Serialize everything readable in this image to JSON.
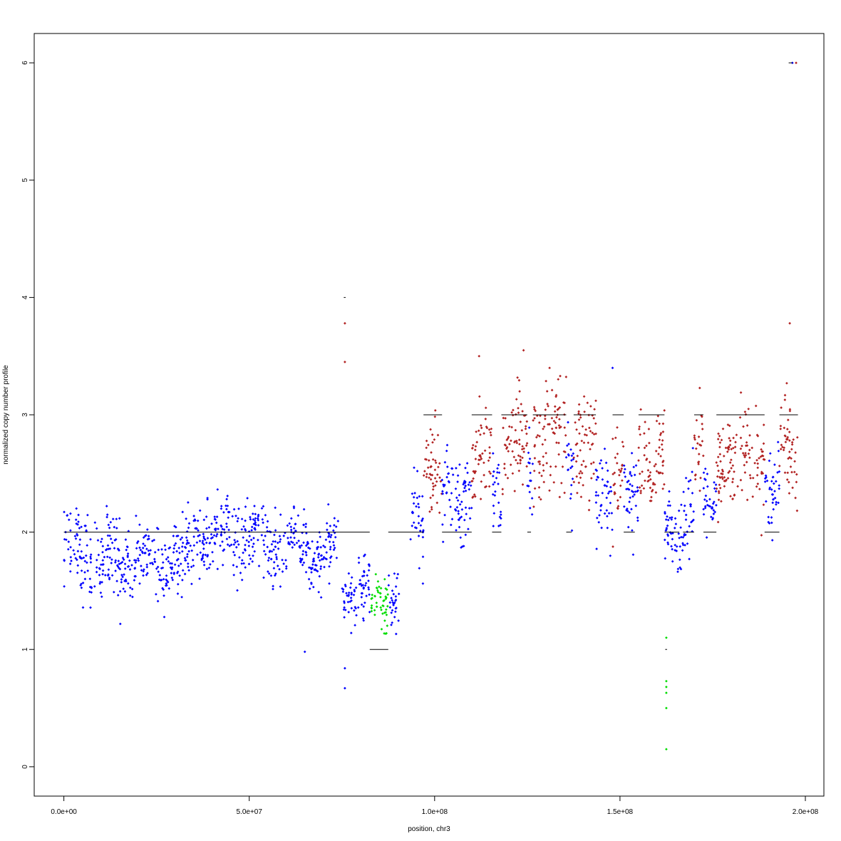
{
  "chart_data": {
    "type": "scatter",
    "title": "",
    "xlabel": "position, chr3",
    "ylabel": "normalized copy number profile",
    "xlim": [
      -8000000,
      205000000
    ],
    "ylim": [
      -0.25,
      6.25
    ],
    "x_ticks": [
      0,
      50000000,
      100000000,
      150000000,
      200000000
    ],
    "x_tick_labels": [
      "0.0e+00",
      "5.0e+07",
      "1.0e+08",
      "1.5e+08",
      "2.0e+08"
    ],
    "y_ticks": [
      0,
      1,
      2,
      3,
      4,
      5,
      6
    ],
    "y_tick_labels": [
      "0",
      "1",
      "2",
      "3",
      "4",
      "5",
      "6"
    ],
    "grid": false,
    "legend": "none",
    "colors": {
      "normal": "#0000ff",
      "gain": "#b22222",
      "loss": "#00dd00",
      "segment_line": "#000000"
    },
    "point_density_per_mb": 10,
    "segments": [
      {
        "start": 0,
        "end": 15000000,
        "mean": 1.8,
        "sd": 0.17,
        "call": "normal",
        "copy_number": 2
      },
      {
        "start": 15000000,
        "end": 35000000,
        "mean": 1.75,
        "sd": 0.14,
        "call": "normal",
        "copy_number": 2
      },
      {
        "start": 35000000,
        "end": 55000000,
        "mean": 1.95,
        "sd": 0.15,
        "call": "normal",
        "copy_number": 2
      },
      {
        "start": 55000000,
        "end": 74000000,
        "mean": 1.85,
        "sd": 0.13,
        "call": "normal",
        "copy_number": 2
      },
      {
        "start": 75000000,
        "end": 82500000,
        "mean": 1.5,
        "sd": 0.12,
        "call": "normal",
        "copy_number": 2
      },
      {
        "start": 82500000,
        "end": 87500000,
        "mean": 1.4,
        "sd": 0.14,
        "call": "loss",
        "copy_number": 1
      },
      {
        "start": 87500000,
        "end": 90500000,
        "mean": 1.5,
        "sd": 0.13,
        "call": "normal",
        "copy_number": 2
      },
      {
        "start": 93500000,
        "end": 97000000,
        "mean": 2.1,
        "sd": 0.22,
        "call": "normal",
        "copy_number": 2
      },
      {
        "start": 97000000,
        "end": 102000000,
        "mean": 2.6,
        "sd": 0.18,
        "call": "gain",
        "copy_number": 3
      },
      {
        "start": 102000000,
        "end": 110000000,
        "mean": 2.25,
        "sd": 0.2,
        "call": "normal",
        "copy_number": 2
      },
      {
        "start": 110000000,
        "end": 115500000,
        "mean": 2.6,
        "sd": 0.22,
        "call": "gain",
        "copy_number": 3
      },
      {
        "start": 115500000,
        "end": 118000000,
        "mean": 2.4,
        "sd": 0.15,
        "call": "normal",
        "copy_number": 2
      },
      {
        "start": 118000000,
        "end": 125000000,
        "mean": 2.7,
        "sd": 0.22,
        "call": "gain",
        "copy_number": 3
      },
      {
        "start": 125000000,
        "end": 126500000,
        "mean": 2.55,
        "sd": 0.2,
        "call": "normal",
        "copy_number": 2
      },
      {
        "start": 126500000,
        "end": 135500000,
        "mean": 2.8,
        "sd": 0.22,
        "call": "gain",
        "copy_number": 3
      },
      {
        "start": 135500000,
        "end": 137500000,
        "mean": 2.6,
        "sd": 0.2,
        "call": "normal",
        "copy_number": 2
      },
      {
        "start": 137500000,
        "end": 143500000,
        "mean": 2.7,
        "sd": 0.22,
        "call": "gain",
        "copy_number": 3
      },
      {
        "start": 143500000,
        "end": 148000000,
        "mean": 2.3,
        "sd": 0.2,
        "call": "normal",
        "copy_number": 2
      },
      {
        "start": 148000000,
        "end": 151000000,
        "mean": 2.6,
        "sd": 0.18,
        "call": "gain",
        "copy_number": 3
      },
      {
        "start": 151000000,
        "end": 155000000,
        "mean": 2.3,
        "sd": 0.18,
        "call": "normal",
        "copy_number": 2
      },
      {
        "start": 155000000,
        "end": 162000000,
        "mean": 2.6,
        "sd": 0.2,
        "call": "gain",
        "copy_number": 3
      },
      {
        "start": 162000000,
        "end": 167000000,
        "mean": 1.95,
        "sd": 0.15,
        "call": "normal",
        "copy_number": 2
      },
      {
        "start": 167000000,
        "end": 170000000,
        "mean": 2.3,
        "sd": 0.2,
        "call": "normal",
        "copy_number": 2
      },
      {
        "start": 170000000,
        "end": 172500000,
        "mean": 2.65,
        "sd": 0.2,
        "call": "gain",
        "copy_number": 3
      },
      {
        "start": 172500000,
        "end": 176000000,
        "mean": 2.2,
        "sd": 0.15,
        "call": "normal",
        "copy_number": 2
      },
      {
        "start": 176000000,
        "end": 189000000,
        "mean": 2.6,
        "sd": 0.22,
        "call": "gain",
        "copy_number": 3
      },
      {
        "start": 189000000,
        "end": 193000000,
        "mean": 2.35,
        "sd": 0.18,
        "call": "normal",
        "copy_number": 2
      },
      {
        "start": 193000000,
        "end": 198000000,
        "mean": 2.65,
        "sd": 0.25,
        "call": "gain",
        "copy_number": 3
      }
    ],
    "points_extra": [
      {
        "x": 75800000,
        "y": 3.78,
        "call": "gain"
      },
      {
        "x": 75800000,
        "y": 3.45,
        "call": "gain"
      },
      {
        "x": 75800000,
        "y": 0.84,
        "call": "normal"
      },
      {
        "x": 75800000,
        "y": 0.67,
        "call": "normal"
      },
      {
        "x": 65000000,
        "y": 0.98,
        "call": "normal"
      },
      {
        "x": 162500000,
        "y": 1.1,
        "call": "loss"
      },
      {
        "x": 162500000,
        "y": 0.73,
        "call": "loss"
      },
      {
        "x": 162500000,
        "y": 0.68,
        "call": "loss"
      },
      {
        "x": 162500000,
        "y": 0.63,
        "call": "loss"
      },
      {
        "x": 162500000,
        "y": 0.5,
        "call": "loss"
      },
      {
        "x": 162500000,
        "y": 0.15,
        "call": "loss"
      },
      {
        "x": 195800000,
        "y": 3.78,
        "call": "gain"
      },
      {
        "x": 196500000,
        "y": 6.0,
        "call": "normal"
      },
      {
        "x": 197500000,
        "y": 6.0,
        "call": "gain"
      },
      {
        "x": 148000000,
        "y": 3.4,
        "call": "normal"
      },
      {
        "x": 124000000,
        "y": 3.55,
        "call": "gain"
      },
      {
        "x": 131000000,
        "y": 3.4,
        "call": "gain"
      },
      {
        "x": 112000000,
        "y": 3.5,
        "call": "gain"
      }
    ],
    "segment_lines": [
      {
        "x0": 0,
        "x1": 82500000,
        "y": 2
      },
      {
        "x0": 87500000,
        "x1": 97000000,
        "y": 2
      },
      {
        "x0": 82500000,
        "x1": 87500000,
        "y": 1
      },
      {
        "x0": 97000000,
        "x1": 102000000,
        "y": 3
      },
      {
        "x0": 110000000,
        "x1": 115500000,
        "y": 3
      },
      {
        "x0": 118000000,
        "x1": 125000000,
        "y": 3
      },
      {
        "x0": 126500000,
        "x1": 135500000,
        "y": 3
      },
      {
        "x0": 137500000,
        "x1": 143500000,
        "y": 3
      },
      {
        "x0": 148000000,
        "x1": 151000000,
        "y": 3
      },
      {
        "x0": 155000000,
        "x1": 162000000,
        "y": 3
      },
      {
        "x0": 170000000,
        "x1": 172500000,
        "y": 3
      },
      {
        "x0": 176000000,
        "x1": 189000000,
        "y": 3
      },
      {
        "x0": 193000000,
        "x1": 198000000,
        "y": 3
      },
      {
        "x0": 102000000,
        "x1": 110000000,
        "y": 2
      },
      {
        "x0": 115500000,
        "x1": 118000000,
        "y": 2
      },
      {
        "x0": 125000000,
        "x1": 126000000,
        "y": 2
      },
      {
        "x0": 135500000,
        "x1": 137000000,
        "y": 2
      },
      {
        "x0": 151000000,
        "x1": 154000000,
        "y": 2
      },
      {
        "x0": 162000000,
        "x1": 166000000,
        "y": 2
      },
      {
        "x0": 167000000,
        "x1": 170000000,
        "y": 2
      },
      {
        "x0": 172500000,
        "x1": 176000000,
        "y": 2
      },
      {
        "x0": 189000000,
        "x1": 193000000,
        "y": 2
      },
      {
        "x0": 75500000,
        "x1": 76000000,
        "y": 4
      },
      {
        "x0": 162200000,
        "x1": 162700000,
        "y": 1
      },
      {
        "x0": 195500000,
        "x1": 196500000,
        "y": 6
      }
    ]
  }
}
